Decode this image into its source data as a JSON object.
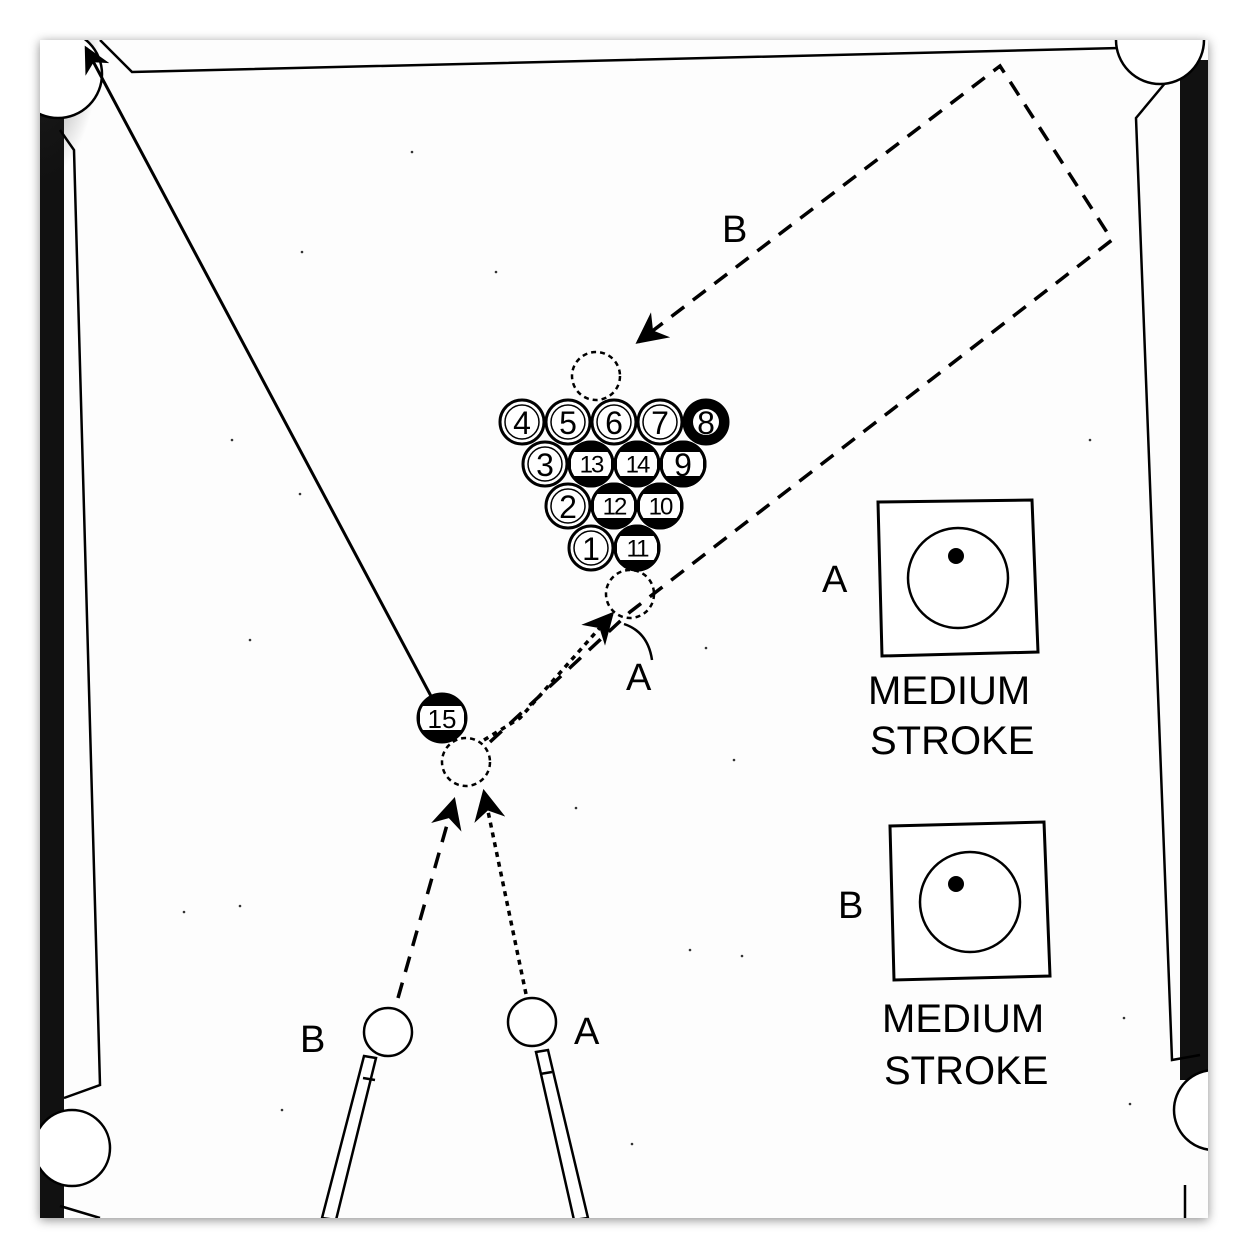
{
  "shot_labels": {
    "path_b": "B",
    "path_a": "A",
    "cue_ball_b": "B",
    "cue_ball_a": "A"
  },
  "object_ball": "15",
  "rack": {
    "row1": [
      "4",
      "5",
      "6",
      "7",
      "8"
    ],
    "row2": [
      "3",
      "13",
      "14",
      "9"
    ],
    "row3": [
      "2",
      "12",
      "10"
    ],
    "row4": [
      "1",
      "11"
    ]
  },
  "cue_tip_diagrams": [
    {
      "label": "A",
      "stroke_line1": "MEDIUM",
      "stroke_line2": "STROKE"
    },
    {
      "label": "B",
      "stroke_line1": "MEDIUM",
      "stroke_line2": "STROKE"
    }
  ]
}
